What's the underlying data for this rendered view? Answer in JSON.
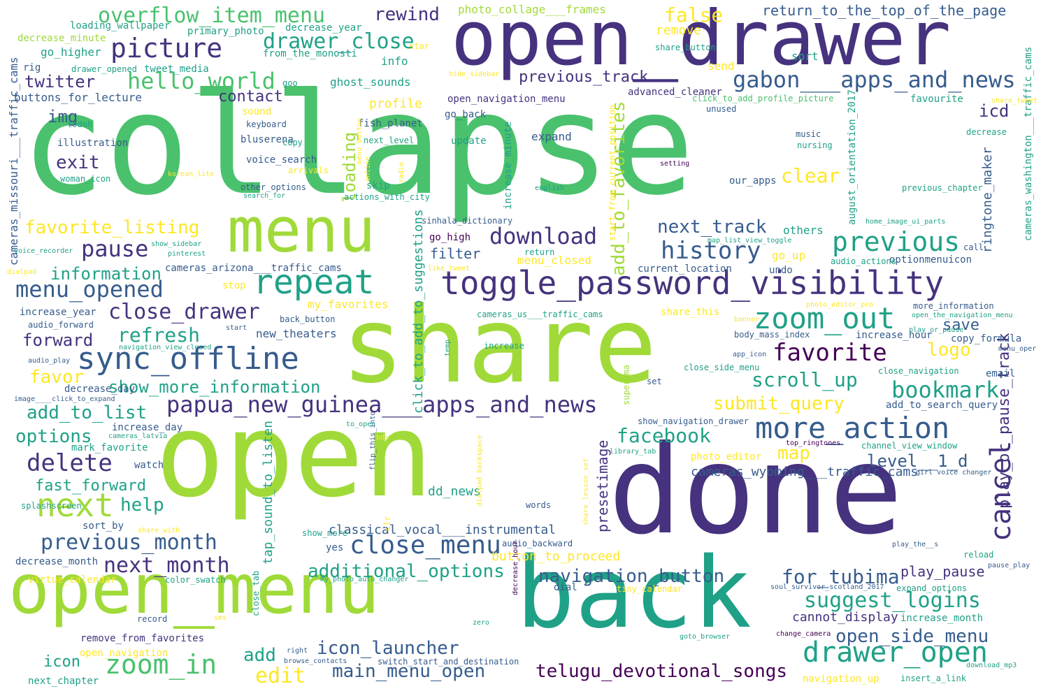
{
  "palette": {
    "background": "#ffffff",
    "dark_purple": "#440154",
    "indigo": "#46327e",
    "blue": "#365c8d",
    "steel_blue": "#277f8e",
    "teal": "#1fa187",
    "green": "#4ac16d",
    "light_green": "#a0da39",
    "yellow": "#fde725"
  },
  "words": [
    {
      "text": "collapse"
    },
    {
      "text": "open_drawer"
    },
    {
      "text": "share"
    },
    {
      "text": "open"
    },
    {
      "text": "done"
    },
    {
      "text": "back"
    },
    {
      "text": "open_menu"
    },
    {
      "text": "menu"
    },
    {
      "text": "toggle_password_visibility"
    },
    {
      "text": "sync_offline"
    },
    {
      "text": "repeat"
    },
    {
      "text": "picture"
    },
    {
      "text": "papua_new_guinea___apps_and_news"
    },
    {
      "text": "more_action"
    },
    {
      "text": "drawer_open"
    },
    {
      "text": "gabon___apps_and_news"
    },
    {
      "text": "zoom_out"
    },
    {
      "text": "zoom_in"
    },
    {
      "text": "next"
    },
    {
      "text": "hello_world"
    },
    {
      "text": "overflow_item_menu"
    },
    {
      "text": "cancel"
    },
    {
      "text": "close_menu"
    },
    {
      "text": "history"
    },
    {
      "text": "previous"
    },
    {
      "text": "bookmark"
    },
    {
      "text": "favorite"
    },
    {
      "text": "delete"
    },
    {
      "text": "menu_opened"
    },
    {
      "text": "close_drawer"
    },
    {
      "text": "drawer_close"
    },
    {
      "text": "download"
    },
    {
      "text": "previous_month"
    },
    {
      "text": "suggest_logins"
    },
    {
      "text": "next_month"
    },
    {
      "text": "navigation_button"
    },
    {
      "text": "icon_launcher"
    },
    {
      "text": "main_menu_open"
    },
    {
      "text": "telugu_devotional_songs"
    },
    {
      "text": "open_side_menu"
    },
    {
      "text": "for_tubima"
    },
    {
      "text": "additional_options"
    },
    {
      "text": "facebook"
    },
    {
      "text": "add_to_list"
    },
    {
      "text": "refresh"
    },
    {
      "text": "favorite_listing"
    },
    {
      "text": "next_track"
    },
    {
      "text": "show_more_information"
    },
    {
      "text": "information"
    },
    {
      "text": "scroll_up"
    },
    {
      "text": "submit_query"
    },
    {
      "text": "level__1_d"
    },
    {
      "text": "clear"
    },
    {
      "text": "pause"
    },
    {
      "text": "edit"
    },
    {
      "text": "options"
    },
    {
      "text": "false"
    },
    {
      "text": "return_to_the_top_of_the_page"
    },
    {
      "text": "rewind"
    },
    {
      "text": "img"
    },
    {
      "text": "twitter"
    },
    {
      "text": "exit"
    },
    {
      "text": "forward"
    },
    {
      "text": "favor"
    },
    {
      "text": "fast_forward"
    },
    {
      "text": "help"
    },
    {
      "text": "add"
    },
    {
      "text": "icon"
    },
    {
      "text": "loading"
    },
    {
      "text": "contact"
    },
    {
      "text": "icd"
    },
    {
      "text": "save"
    },
    {
      "text": "logo"
    },
    {
      "text": "map"
    },
    {
      "text": "filter"
    },
    {
      "text": "previous_track"
    },
    {
      "text": "cameras_wyoming___traffic_cams"
    },
    {
      "text": "classical_vocal___instrumental"
    },
    {
      "text": "dd_news"
    },
    {
      "text": "play_pause"
    },
    {
      "text": "cannot_display"
    },
    {
      "text": "button_to_proceed"
    },
    {
      "text": "add_to_favorites"
    },
    {
      "text": "play_or_pause_track"
    },
    {
      "text": "presetimage"
    },
    {
      "text": "tap_sound_to_listen"
    },
    {
      "text": "click_to_add_to_suggestions"
    },
    {
      "text": "ringtone_maker"
    },
    {
      "text": "august_orientation_2017"
    },
    {
      "text": "cameras_missouri___traffic_cams"
    },
    {
      "text": "cameras_washington___traffic_cams"
    },
    {
      "text": "photo_collage___frames"
    },
    {
      "text": "open_navigation_menu"
    },
    {
      "text": "advanced_cleaner"
    },
    {
      "text": "click_to_add_profile_picture"
    },
    {
      "text": "favourite"
    },
    {
      "text": "buttons_for_lecture"
    },
    {
      "text": "ghost_sounds"
    },
    {
      "text": "profile"
    },
    {
      "text": "info"
    },
    {
      "text": "send"
    },
    {
      "text": "sort"
    },
    {
      "text": "remove"
    },
    {
      "text": "share_button"
    },
    {
      "text": "loading_wallpaper"
    },
    {
      "text": "primary_photo"
    },
    {
      "text": "decrease_year"
    },
    {
      "text": "decrease_minute"
    },
    {
      "text": "go_higher"
    },
    {
      "text": "rig"
    },
    {
      "text": "drawer_opened"
    },
    {
      "text": "tweet_media"
    },
    {
      "text": "from_the_monosti"
    },
    {
      "text": "star"
    },
    {
      "text": "hide_sidebar"
    },
    {
      "text": "goo"
    },
    {
      "text": "sound"
    },
    {
      "text": "keyboard"
    },
    {
      "text": "todoh"
    },
    {
      "text": "illustration"
    },
    {
      "text": "bluserena"
    },
    {
      "text": "copy"
    },
    {
      "text": "voice_search"
    },
    {
      "text": "fish_planet"
    },
    {
      "text": "next_level"
    },
    {
      "text": "go_back"
    },
    {
      "text": "update"
    },
    {
      "text": "expand"
    },
    {
      "text": "increase_minute"
    },
    {
      "text": "start_from_current_position"
    },
    {
      "text": "unused"
    },
    {
      "text": "decrease"
    },
    {
      "text": "music"
    },
    {
      "text": "nursing"
    },
    {
      "text": "share_tweet"
    },
    {
      "text": "korean_lite"
    },
    {
      "text": "woman_icon"
    },
    {
      "text": "arrivals"
    },
    {
      "text": "other_options"
    },
    {
      "text": "search_for"
    },
    {
      "text": "skip"
    },
    {
      "text": "actions_with_city"
    },
    {
      "text": "online"
    },
    {
      "text": "radio"
    },
    {
      "text": "menu_button"
    },
    {
      "text": "setting"
    },
    {
      "text": "english"
    },
    {
      "text": "our_apps"
    },
    {
      "text": "previous_chapter"
    },
    {
      "text": "home_image_ui_parts"
    },
    {
      "text": "sinhala_dictionary"
    },
    {
      "text": "go_high"
    },
    {
      "text": "return"
    },
    {
      "text": "menu_closed"
    },
    {
      "text": "current_location"
    },
    {
      "text": "map_list_view_toggle"
    },
    {
      "text": "go_up"
    },
    {
      "text": "undo"
    },
    {
      "text": "others"
    },
    {
      "text": "optionmenuicon"
    },
    {
      "text": "audio_actions"
    },
    {
      "text": "call"
    },
    {
      "text": "voice_recorder"
    },
    {
      "text": "show_sidebar"
    },
    {
      "text": "pinterest"
    },
    {
      "text": "dialpad"
    },
    {
      "text": "cameras_arizona___traffic_cams"
    },
    {
      "text": "stop"
    },
    {
      "text": "my_favorites"
    },
    {
      "text": "like_tweet"
    },
    {
      "text": "increase_year"
    },
    {
      "text": "audio_forward"
    },
    {
      "text": "start"
    },
    {
      "text": "back_button"
    },
    {
      "text": "new_theaters"
    },
    {
      "text": "cameras_us___traffic_cams"
    },
    {
      "text": "share_this"
    },
    {
      "text": "banner"
    },
    {
      "text": "photo_editor_pro"
    },
    {
      "text": "more_information"
    },
    {
      "text": "open_the_navigation_menu"
    },
    {
      "text": "body_mass_index"
    },
    {
      "text": "increase_hour"
    },
    {
      "text": "copy_formula"
    },
    {
      "text": "play_or_pause"
    },
    {
      "text": "menu_oper"
    },
    {
      "text": "navigation_view_closed"
    },
    {
      "text": "increase"
    },
    {
      "text": "temp"
    },
    {
      "text": "app_icon"
    },
    {
      "text": "close_side_menu"
    },
    {
      "text": "close_navigation"
    },
    {
      "text": "audio_play"
    },
    {
      "text": "email"
    },
    {
      "text": "decrease_day"
    },
    {
      "text": "set"
    },
    {
      "text": "superama"
    },
    {
      "text": "image____click_to_expand"
    },
    {
      "text": "add_to_search_query"
    },
    {
      "text": "increase_day"
    },
    {
      "text": "to_open"
    },
    {
      "text": "show_navigation_drawer"
    },
    {
      "text": "cameras_latvia"
    },
    {
      "text": "mark_favorite"
    },
    {
      "text": "bds"
    },
    {
      "text": "top_ringtones"
    },
    {
      "text": "channel_view_window"
    },
    {
      "text": "library_tab"
    },
    {
      "text": "photo_editor"
    },
    {
      "text": "girl voice changer"
    },
    {
      "text": "watch"
    },
    {
      "text": "flip_this_into"
    },
    {
      "text": "dialpad_backspace"
    },
    {
      "text": "share_lesson_set"
    },
    {
      "text": "words"
    },
    {
      "text": "splashscreen"
    },
    {
      "text": "sort_by"
    },
    {
      "text": "share_with"
    },
    {
      "text": "show_more"
    },
    {
      "text": "clr"
    },
    {
      "text": "yes"
    },
    {
      "text": "audio_backward"
    },
    {
      "text": "play_the__s"
    },
    {
      "text": "pause_play"
    },
    {
      "text": "reload"
    },
    {
      "text": "decrease_month"
    },
    {
      "text": "virtue_calendar"
    },
    {
      "text": "color_swatch"
    },
    {
      "text": "my_photo_auto_changer"
    },
    {
      "text": "decrease_hour"
    },
    {
      "text": "dial"
    },
    {
      "text": "tiny_calendar"
    },
    {
      "text": "soul_survivor_scotland_2017"
    },
    {
      "text": "expand_options"
    },
    {
      "text": "record"
    },
    {
      "text": "sms"
    },
    {
      "text": "close_tab"
    },
    {
      "text": "zero"
    },
    {
      "text": "increase_month"
    },
    {
      "text": "remove_from_favorites"
    },
    {
      "text": "goto_browser"
    },
    {
      "text": "change_camera"
    },
    {
      "text": "open_navigation"
    },
    {
      "text": "right"
    },
    {
      "text": "browse_contacts"
    },
    {
      "text": "switch_start_and_destination"
    },
    {
      "text": "download_mp3"
    },
    {
      "text": "navigation_up"
    },
    {
      "text": "insert_a_link"
    },
    {
      "text": "next_chapter"
    }
  ]
}
